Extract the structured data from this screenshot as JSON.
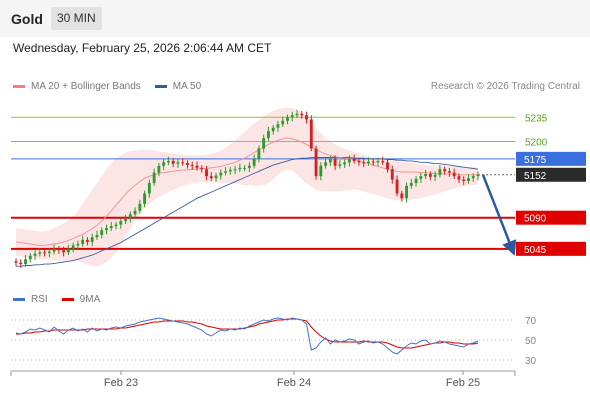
{
  "header": {
    "title": "Gold",
    "timeframe": "30 MIN"
  },
  "datetime": "Wednesday, February 25, 2026 2:06:44 AM CET",
  "price_legend": [
    {
      "label": "MA 20 + Bollinger Bands",
      "color": "#f08080"
    },
    {
      "label": "MA 50",
      "color": "#2e5c99"
    }
  ],
  "credit": "Research © 2026 Trading Central",
  "rsi_legend": [
    {
      "label": "RSI",
      "color": "#4472c4"
    },
    {
      "label": "9MA",
      "color": "#e00000"
    }
  ],
  "colors": {
    "up": "#2e9a2e",
    "down": "#d42020",
    "support": "#e00000",
    "pivot": "#3a6fe0",
    "resistance": "#8cc63f",
    "arrow": "#2c5aa0",
    "last": "#2b2b2b"
  },
  "chart_data": [
    {
      "type": "candlestick",
      "ylim": [
        5000,
        5260
      ],
      "x_ticks": [
        "Feb 23",
        "Feb 24",
        "Feb 25"
      ],
      "levels": [
        {
          "value": 5235,
          "label": "5235",
          "kind": "resistance"
        },
        {
          "value": 5200,
          "label": "5200",
          "kind": "resistance"
        },
        {
          "value": 5175,
          "label": "5175",
          "kind": "pivot"
        },
        {
          "value": 5152,
          "label": "5152",
          "kind": "last"
        },
        {
          "value": 5090,
          "label": "5090",
          "kind": "support"
        },
        {
          "value": 5045,
          "label": "5045",
          "kind": "support"
        }
      ],
      "close": [
        5025,
        5023,
        5030,
        5035,
        5038,
        5040,
        5039,
        5041,
        5045,
        5043,
        5040,
        5045,
        5050,
        5052,
        5058,
        5055,
        5062,
        5065,
        5072,
        5075,
        5078,
        5080,
        5085,
        5088,
        5095,
        5100,
        5110,
        5125,
        5140,
        5155,
        5165,
        5170,
        5172,
        5168,
        5170,
        5169,
        5166,
        5165,
        5162,
        5160,
        5150,
        5147,
        5151,
        5155,
        5157,
        5159,
        5160,
        5162,
        5162,
        5165,
        5175,
        5190,
        5205,
        5215,
        5220,
        5225,
        5230,
        5235,
        5238,
        5240,
        5238,
        5232,
        5190,
        5150,
        5165,
        5170,
        5175,
        5165,
        5167,
        5170,
        5175,
        5172,
        5170,
        5169,
        5171,
        5170,
        5172,
        5170,
        5160,
        5145,
        5125,
        5118,
        5136,
        5140,
        5146,
        5150,
        5153,
        5149,
        5152,
        5160,
        5157,
        5155,
        5150,
        5145,
        5143,
        5147,
        5150,
        5152
      ],
      "projection": [
        [
          5152,
          5045
        ]
      ],
      "ma20": [
        5055,
        5054,
        5053,
        5052,
        5051,
        5050,
        5050,
        5051,
        5052,
        5053,
        5055,
        5057,
        5060,
        5063,
        5066,
        5070,
        5074,
        5079,
        5085,
        5092,
        5100,
        5108,
        5116,
        5124,
        5131,
        5137,
        5142,
        5147,
        5150,
        5152,
        5154,
        5155,
        5156,
        5157,
        5158,
        5159,
        5159,
        5160,
        5160,
        5161,
        5161,
        5162,
        5163,
        5164,
        5166,
        5168,
        5170,
        5173,
        5176,
        5180,
        5184,
        5188,
        5192,
        5196,
        5199,
        5202,
        5204,
        5205,
        5204,
        5202,
        5199,
        5196,
        5192,
        5188,
        5185,
        5182,
        5180,
        5178,
        5177,
        5176,
        5175,
        5174,
        5172,
        5170,
        5168,
        5166,
        5164,
        5162,
        5160,
        5158,
        5157,
        5156,
        5156,
        5156,
        5156,
        5155,
        5155,
        5154,
        5154,
        5154,
        5153,
        5153,
        5153,
        5152,
        5152,
        5152,
        5152,
        5152
      ],
      "bb_upper": [
        5075,
        5074,
        5073,
        5072,
        5071,
        5070,
        5070,
        5072,
        5075,
        5078,
        5082,
        5086,
        5092,
        5100,
        5110,
        5120,
        5130,
        5140,
        5150,
        5160,
        5168,
        5175,
        5180,
        5184,
        5186,
        5187,
        5188,
        5188,
        5188,
        5187,
        5186,
        5185,
        5184,
        5183,
        5182,
        5181,
        5180,
        5180,
        5180,
        5180,
        5181,
        5182,
        5184,
        5187,
        5191,
        5196,
        5202,
        5208,
        5214,
        5220,
        5226,
        5231,
        5236,
        5240,
        5244,
        5247,
        5248,
        5249,
        5248,
        5246,
        5242,
        5236,
        5229,
        5220,
        5212,
        5205,
        5200,
        5196,
        5192,
        5189,
        5187,
        5185,
        5183,
        5181,
        5179,
        5177,
        5176,
        5175,
        5174,
        5173,
        5172,
        5171,
        5170,
        5169,
        5168,
        5167,
        5166,
        5166,
        5165,
        5165,
        5164,
        5164,
        5164,
        5163,
        5163,
        5163,
        5163,
        5163
      ],
      "bb_lower": [
        5035,
        5034,
        5033,
        5032,
        5031,
        5030,
        5030,
        5030,
        5029,
        5028,
        5028,
        5028,
        5028,
        5027,
        5025,
        5022,
        5020,
        5020,
        5022,
        5026,
        5032,
        5040,
        5050,
        5062,
        5074,
        5086,
        5096,
        5104,
        5110,
        5115,
        5120,
        5124,
        5127,
        5130,
        5133,
        5136,
        5138,
        5140,
        5140,
        5142,
        5141,
        5141,
        5141,
        5140,
        5140,
        5140,
        5139,
        5138,
        5137,
        5137,
        5136,
        5136,
        5137,
        5140,
        5145,
        5152,
        5158,
        5160,
        5158,
        5152,
        5145,
        5140,
        5135,
        5130,
        5128,
        5128,
        5128,
        5128,
        5128,
        5129,
        5130,
        5131,
        5130,
        5128,
        5126,
        5124,
        5122,
        5120,
        5118,
        5116,
        5115,
        5115,
        5115,
        5116,
        5117,
        5118,
        5120,
        5122,
        5124,
        5126,
        5128,
        5130,
        5132,
        5134,
        5135,
        5136,
        5137,
        5138
      ],
      "ma50": [
        5020,
        5020,
        5021,
        5021,
        5022,
        5022,
        5023,
        5023,
        5024,
        5025,
        5026,
        5027,
        5028,
        5030,
        5032,
        5034,
        5036,
        5039,
        5042,
        5045,
        5048,
        5051,
        5054,
        5058,
        5062,
        5066,
        5070,
        5074,
        5078,
        5082,
        5086,
        5090,
        5094,
        5098,
        5102,
        5106,
        5110,
        5114,
        5118,
        5121,
        5124,
        5127,
        5130,
        5133,
        5136,
        5139,
        5142,
        5145,
        5148,
        5151,
        5154,
        5157,
        5160,
        5163,
        5166,
        5168,
        5170,
        5172,
        5174,
        5175,
        5176,
        5176,
        5177,
        5177,
        5177,
        5177,
        5177,
        5177,
        5177,
        5177,
        5177,
        5176,
        5176,
        5176,
        5175,
        5175,
        5175,
        5175,
        5174,
        5174,
        5173,
        5173,
        5172,
        5172,
        5171,
        5170,
        5170,
        5169,
        5168,
        5168,
        5167,
        5166,
        5165,
        5164,
        5163,
        5162,
        5161,
        5160
      ]
    },
    {
      "type": "line",
      "ylim": [
        20,
        80
      ],
      "y_ticks": [
        70,
        50,
        30
      ],
      "series": [
        {
          "name": "RSI",
          "values": [
            57,
            56,
            58,
            61,
            60,
            62,
            60,
            58,
            63,
            59,
            56,
            60,
            62,
            59,
            61,
            58,
            62,
            59,
            61,
            60,
            62,
            63,
            62,
            64,
            65,
            66,
            68,
            69,
            70,
            71,
            72,
            71,
            70,
            69,
            68,
            67,
            66,
            64,
            62,
            60,
            56,
            54,
            57,
            60,
            59,
            61,
            60,
            62,
            61,
            64,
            66,
            68,
            70,
            69,
            71,
            72,
            71,
            70,
            72,
            71,
            70,
            66,
            40,
            42,
            48,
            52,
            46,
            50,
            48,
            49,
            51,
            50,
            46,
            48,
            49,
            47,
            48,
            46,
            42,
            38,
            36,
            40,
            44,
            47,
            46,
            49,
            50,
            46,
            47,
            49,
            48,
            46,
            45,
            44,
            43,
            46,
            47,
            49
          ]
        },
        {
          "name": "9MA",
          "values": [
            56,
            56,
            57,
            57,
            58,
            58,
            59,
            59,
            60,
            60,
            60,
            60,
            60,
            60,
            60,
            61,
            61,
            61,
            61,
            61,
            61,
            61,
            62,
            62,
            63,
            64,
            65,
            66,
            67,
            68,
            68,
            69,
            69,
            69,
            69,
            69,
            68,
            68,
            67,
            66,
            64,
            63,
            62,
            61,
            61,
            61,
            61,
            61,
            62,
            63,
            64,
            66,
            67,
            68,
            69,
            70,
            70,
            71,
            71,
            71,
            70,
            69,
            63,
            58,
            54,
            51,
            49,
            48,
            48,
            48,
            48,
            48,
            48,
            49,
            48,
            48,
            48,
            48,
            47,
            45,
            43,
            42,
            42,
            42,
            43,
            44,
            45,
            46,
            47,
            47,
            48,
            48,
            47,
            47,
            46,
            46,
            46,
            47
          ]
        }
      ]
    }
  ]
}
